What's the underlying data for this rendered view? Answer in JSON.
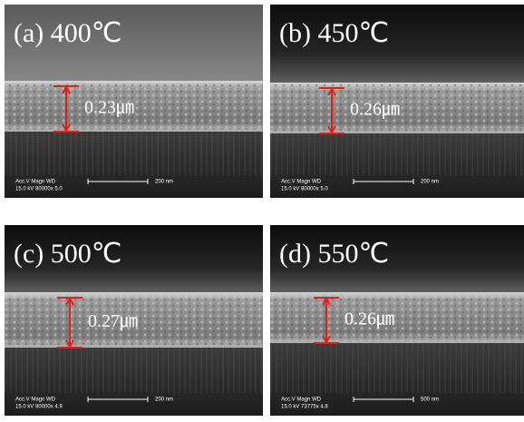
{
  "panels": [
    {
      "label": "(a) 400℃",
      "thickness": "0.23㎛",
      "meta_header": "Acc.V  Magn   WD",
      "meta_values": "15.0 kV 80000x  5.0",
      "scale": "200 nm"
    },
    {
      "label": "(b) 450℃",
      "thickness": "0.26㎛",
      "meta_header": "Acc.V  Magn   WD",
      "meta_values": "15.0 kV 80000x  5.0",
      "scale": "200 nm"
    },
    {
      "label": "(c) 500℃",
      "thickness": "0.27㎛",
      "meta_header": "Acc.V  Magn   WD",
      "meta_values": "15.0 kV 80000x  4.9",
      "scale": "200 nm"
    },
    {
      "label": "(d) 550℃",
      "thickness": "0.26㎛",
      "meta_header": "Acc.V  Magn   WD",
      "meta_values": "15.0 kV 73775x  4.8",
      "scale": "500 nm"
    }
  ]
}
